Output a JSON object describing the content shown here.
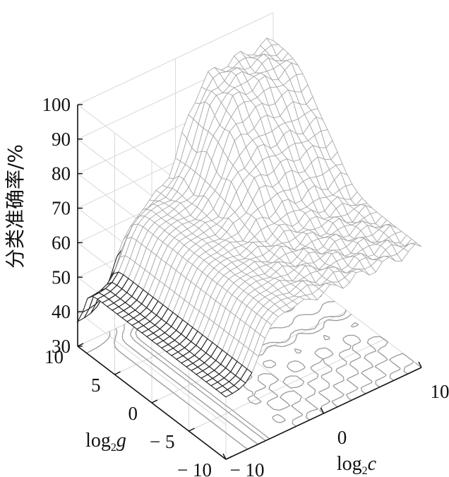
{
  "chart_data": {
    "type": "surface3d",
    "title": "",
    "zlabel": "分类准确率/%",
    "xlabel": {
      "base": "log",
      "sub": "2",
      "var": "c"
    },
    "ylabel": {
      "base": "log",
      "sub": "2",
      "var": "g"
    },
    "xlim": [
      -10,
      10
    ],
    "ylim": [
      -10,
      10
    ],
    "zlim": [
      30,
      100
    ],
    "xticks": [
      {
        "value": -10,
        "label": "− 10"
      },
      {
        "value": 0,
        "label": "0"
      },
      {
        "value": 10,
        "label": "10"
      }
    ],
    "yticks": [
      {
        "value": -10,
        "label": "− 10"
      },
      {
        "value": -5,
        "label": "− 5"
      },
      {
        "value": 0,
        "label": "0"
      },
      {
        "value": 5,
        "label": "5"
      },
      {
        "value": 10,
        "label": "10"
      }
    ],
    "zticks": [
      {
        "value": 30,
        "label": "30"
      },
      {
        "value": 40,
        "label": "40"
      },
      {
        "value": 50,
        "label": "50"
      },
      {
        "value": 60,
        "label": "60"
      },
      {
        "value": 70,
        "label": "70"
      },
      {
        "value": 80,
        "label": "80"
      },
      {
        "value": 90,
        "label": "90"
      },
      {
        "value": 100,
        "label": "100"
      }
    ],
    "grid": true,
    "surface_levels": {
      "low_corner_value": 48,
      "mid_plateau_value": 65,
      "upper_plateau_value": 80,
      "max_plateau_value": 92
    },
    "contour_levels": [
      45,
      50,
      55,
      60,
      62,
      65,
      68,
      70,
      75,
      80,
      85,
      90
    ],
    "colors": {
      "mesh": "#aaaaaa",
      "mesh_dark": "#222222",
      "contour": "#9a9a9a",
      "axis": "#111111",
      "grid": "#d8d8d8"
    }
  }
}
